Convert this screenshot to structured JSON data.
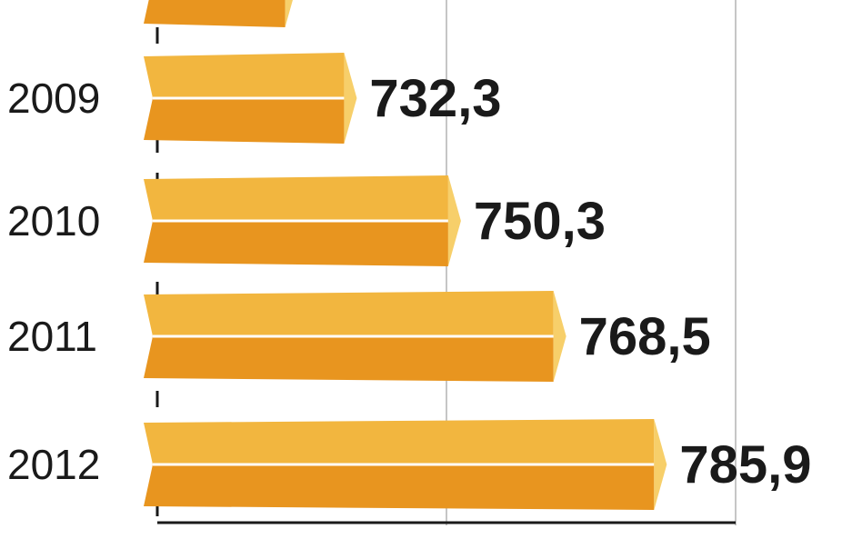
{
  "colors": {
    "bar_top": "#F2B63F",
    "bar_bottom": "#E8951F",
    "bar_cap": "#F7CF6A",
    "bar_divider": "#FFFFFF",
    "gridline": "#B3B3B3",
    "axis": "#1A1A1A",
    "text": "#1A1A1A"
  },
  "chart_data": {
    "type": "bar",
    "orientation": "horizontal",
    "categories": [
      "2009",
      "2010",
      "2011",
      "2012"
    ],
    "values": [
      732.3,
      750.3,
      768.5,
      785.9
    ],
    "value_labels": [
      "732,3",
      "750,3",
      "768,5",
      "785,9"
    ],
    "partial_top_bar_value": 722.1,
    "grid": true,
    "gridline_values": [
      750,
      800
    ]
  }
}
